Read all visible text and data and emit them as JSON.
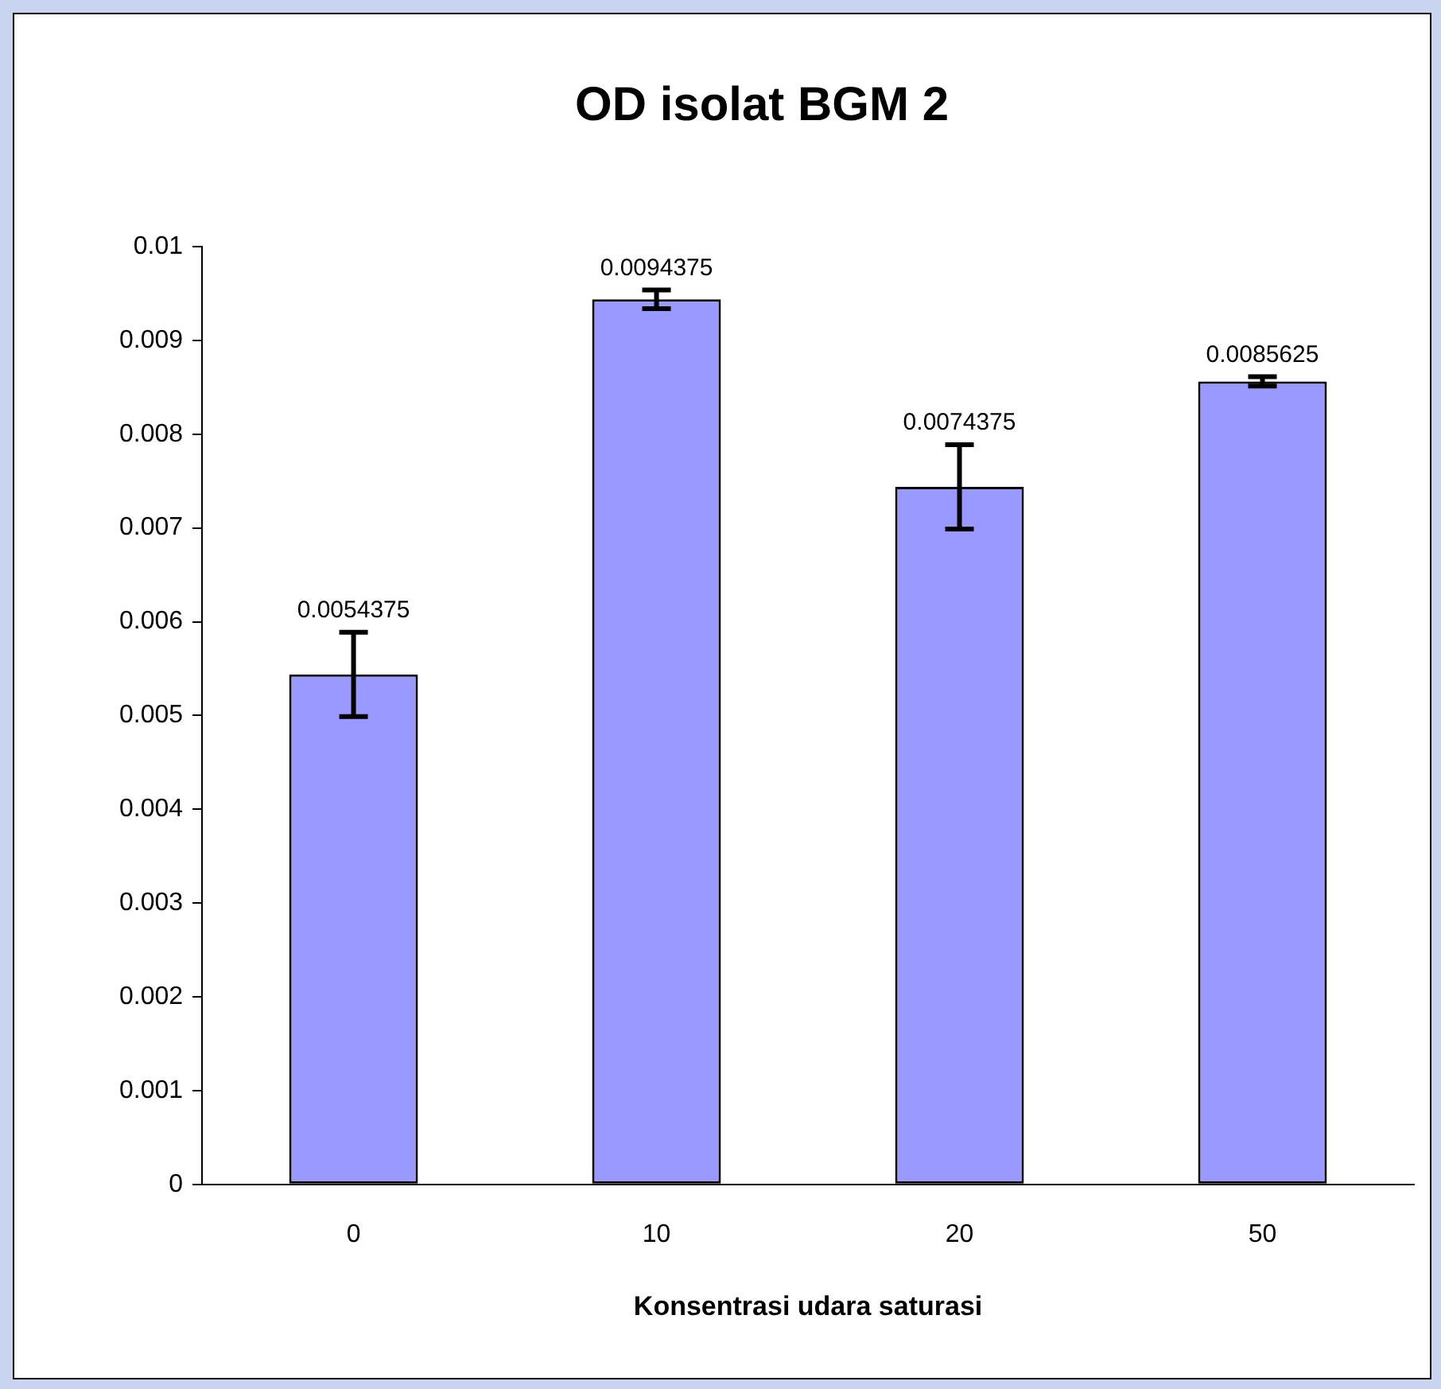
{
  "chart_data": {
    "type": "bar",
    "title": "OD isolat BGM 2",
    "xlabel": "Konsentrasi udara saturasi",
    "categories": [
      "0",
      "10",
      "20",
      "50"
    ],
    "values": [
      0.0054375,
      0.0094375,
      0.0074375,
      0.0085625
    ],
    "errors": [
      0.00045,
      0.0001,
      0.00045,
      5e-05
    ],
    "color": "#9999ff",
    "data_labels": true,
    "grid": false,
    "legend": false,
    "ylim": [
      0,
      0.01
    ],
    "yticks": [
      0,
      0.001,
      0.002,
      0.003,
      0.004,
      0.005,
      0.006,
      0.007,
      0.008,
      0.009,
      0.01
    ]
  }
}
